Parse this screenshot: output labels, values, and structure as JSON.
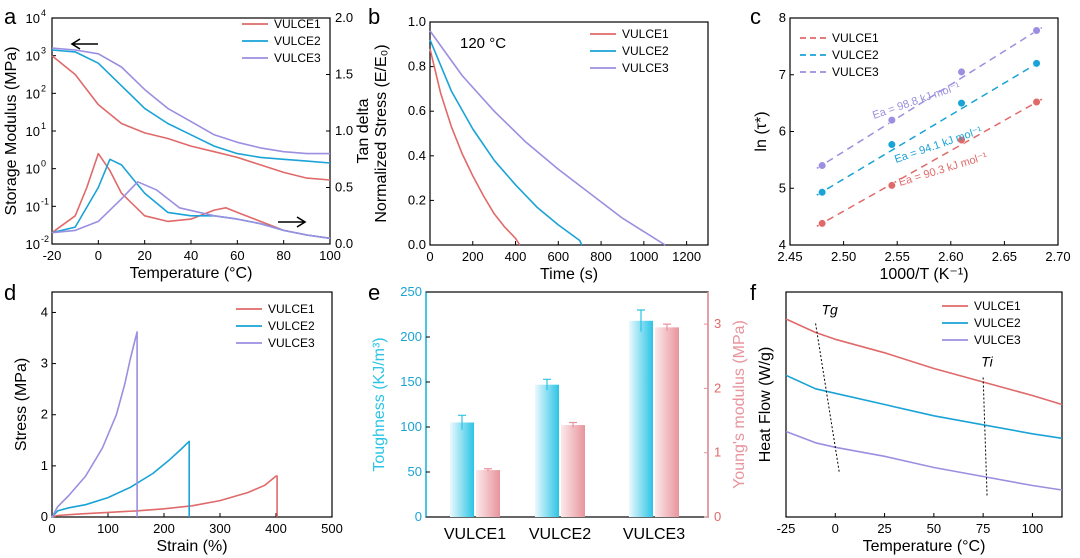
{
  "panel_labels": [
    "a",
    "b",
    "c",
    "d",
    "e",
    "f"
  ],
  "legend_names": [
    "VULCE1",
    "VULCE2",
    "VULCE3"
  ],
  "colors": {
    "VULCE1": "#e06a6a",
    "VULCE2": "#1aa3d6",
    "VULCE3": "#9a8fe0"
  },
  "chart_data": [
    {
      "panel": "a",
      "type": "line",
      "xlabel": "Temperature (°C)",
      "ylabel": "Storage Modulus (MPa)",
      "y2label": "Tan delta",
      "xlim": [
        -20,
        100
      ],
      "ylim_log": [
        -2,
        4
      ],
      "y2lim": [
        0,
        2.0
      ],
      "xticks": [
        "-20",
        "0",
        "20",
        "40",
        "60",
        "80",
        "100"
      ],
      "yticks": [
        "10",
        "10",
        "10",
        "10",
        "10",
        "10",
        "10"
      ],
      "yexps": [
        "-2",
        "-1",
        "0",
        "1",
        "2",
        "3",
        "4"
      ],
      "y2ticks": [
        "0.0",
        "0.5",
        "1.0",
        "1.5",
        "2.0"
      ],
      "annotations": [
        "arrow-left: storage modulus axis",
        "arrow-right: tan delta axis"
      ],
      "storage_modulus": [
        {
          "name": "VULCE1",
          "x": [
            -20,
            -10,
            0,
            10,
            20,
            30,
            40,
            50,
            60,
            70,
            80,
            90,
            100
          ],
          "logy": [
            3.0,
            2.5,
            1.7,
            1.2,
            0.95,
            0.8,
            0.6,
            0.45,
            0.3,
            0.1,
            -0.1,
            -0.25,
            -0.3
          ]
        },
        {
          "name": "VULCE2",
          "x": [
            -20,
            -10,
            0,
            10,
            20,
            30,
            40,
            50,
            60,
            70,
            80,
            90,
            100
          ],
          "logy": [
            3.15,
            3.1,
            2.8,
            2.2,
            1.6,
            1.2,
            0.9,
            0.6,
            0.4,
            0.3,
            0.25,
            0.2,
            0.15
          ]
        },
        {
          "name": "VULCE3",
          "x": [
            -20,
            -10,
            0,
            10,
            20,
            30,
            40,
            50,
            60,
            70,
            80,
            90,
            100
          ],
          "logy": [
            3.2,
            3.15,
            3.05,
            2.7,
            2.1,
            1.6,
            1.25,
            0.9,
            0.7,
            0.55,
            0.45,
            0.4,
            0.4
          ]
        }
      ],
      "tan_delta": [
        {
          "name": "VULCE1",
          "x": [
            -20,
            -10,
            -5,
            0,
            5,
            10,
            20,
            30,
            40,
            50,
            55,
            60,
            70,
            80,
            90,
            100
          ],
          "y": [
            0.1,
            0.25,
            0.5,
            0.8,
            0.65,
            0.45,
            0.25,
            0.2,
            0.22,
            0.3,
            0.32,
            0.28,
            0.2,
            0.12,
            0.08,
            0.05
          ]
        },
        {
          "name": "VULCE2",
          "x": [
            -20,
            -10,
            0,
            5,
            10,
            20,
            30,
            40,
            50,
            60,
            70,
            80,
            90,
            100
          ],
          "y": [
            0.1,
            0.15,
            0.5,
            0.75,
            0.7,
            0.45,
            0.28,
            0.25,
            0.25,
            0.22,
            0.18,
            0.12,
            0.08,
            0.05
          ]
        },
        {
          "name": "VULCE3",
          "x": [
            -20,
            -10,
            0,
            10,
            17,
            25,
            35,
            50,
            60,
            70,
            80,
            90,
            100
          ],
          "y": [
            0.1,
            0.12,
            0.2,
            0.4,
            0.55,
            0.48,
            0.32,
            0.25,
            0.22,
            0.18,
            0.12,
            0.08,
            0.05
          ]
        }
      ]
    },
    {
      "panel": "b",
      "type": "line",
      "xlabel": "Time (s)",
      "ylabel": "Normalized Stress (E/E₀)",
      "annotation": "120 °C",
      "xlim": [
        0,
        1300
      ],
      "ylim": [
        0,
        1.0
      ],
      "xticks": [
        "0",
        "200",
        "400",
        "600",
        "800",
        "1000",
        "1200"
      ],
      "yticks": [
        "0.0",
        "0.2",
        "0.4",
        "0.6",
        "0.8",
        "1.0"
      ],
      "series": [
        {
          "name": "VULCE1",
          "x": [
            0,
            50,
            100,
            150,
            200,
            250,
            300,
            350,
            400,
            420
          ],
          "y": [
            0.88,
            0.68,
            0.53,
            0.41,
            0.31,
            0.22,
            0.14,
            0.08,
            0.03,
            0.0
          ]
        },
        {
          "name": "VULCE2",
          "x": [
            0,
            100,
            200,
            300,
            400,
            500,
            600,
            700,
            710
          ],
          "y": [
            0.92,
            0.69,
            0.52,
            0.38,
            0.27,
            0.17,
            0.09,
            0.02,
            0.0
          ]
        },
        {
          "name": "VULCE3",
          "x": [
            0,
            150,
            300,
            450,
            600,
            750,
            900,
            1000,
            1100
          ],
          "y": [
            0.96,
            0.76,
            0.6,
            0.46,
            0.34,
            0.23,
            0.12,
            0.06,
            0.0
          ]
        }
      ]
    },
    {
      "panel": "c",
      "type": "scatter",
      "xlabel": "1000/T (K⁻¹)",
      "ylabel": "ln (τ*)",
      "xlim": [
        2.45,
        2.7
      ],
      "ylim": [
        4,
        8
      ],
      "xticks": [
        "2.45",
        "2.50",
        "2.55",
        "2.60",
        "2.65",
        "2.70"
      ],
      "yticks": [
        "4",
        "5",
        "6",
        "7",
        "8"
      ],
      "series": [
        {
          "name": "VULCE1",
          "x": [
            2.48,
            2.545,
            2.61,
            2.68
          ],
          "y": [
            4.38,
            5.05,
            5.85,
            6.52
          ],
          "fit_label": "Ea = 90.3 kJ mol⁻¹"
        },
        {
          "name": "VULCE2",
          "x": [
            2.48,
            2.545,
            2.61,
            2.68
          ],
          "y": [
            4.93,
            5.77,
            6.5,
            7.2
          ],
          "fit_label": "Ea = 94.1 kJ mol⁻¹"
        },
        {
          "name": "VULCE3",
          "x": [
            2.48,
            2.545,
            2.61,
            2.68
          ],
          "y": [
            5.4,
            6.2,
            7.05,
            7.78
          ],
          "fit_label": "Ea = 98.8 kJ mol⁻¹"
        }
      ]
    },
    {
      "panel": "d",
      "type": "line",
      "xlabel": "Strain (%)",
      "ylabel": "Stress (MPa)",
      "xlim": [
        0,
        500
      ],
      "ylim": [
        0,
        4.4
      ],
      "xticks": [
        "0",
        "100",
        "200",
        "300",
        "400",
        "500"
      ],
      "yticks": [
        "0",
        "1",
        "2",
        "3",
        "4"
      ],
      "series": [
        {
          "name": "VULCE1",
          "x": [
            0,
            10,
            50,
            100,
            150,
            200,
            250,
            300,
            350,
            380,
            400,
            402,
            402
          ],
          "y": [
            0,
            0.03,
            0.06,
            0.09,
            0.12,
            0.16,
            0.22,
            0.32,
            0.48,
            0.62,
            0.8,
            0.8,
            0.0
          ]
        },
        {
          "name": "VULCE2",
          "x": [
            0,
            10,
            30,
            60,
            100,
            140,
            180,
            210,
            230,
            242,
            245,
            245
          ],
          "y": [
            0,
            0.12,
            0.18,
            0.24,
            0.38,
            0.58,
            0.85,
            1.12,
            1.32,
            1.45,
            1.48,
            0.0
          ]
        },
        {
          "name": "VULCE3",
          "x": [
            0,
            10,
            30,
            60,
            90,
            115,
            130,
            140,
            148,
            152,
            152
          ],
          "y": [
            0,
            0.2,
            0.42,
            0.8,
            1.35,
            2.0,
            2.6,
            3.1,
            3.45,
            3.62,
            0.0
          ]
        }
      ]
    },
    {
      "panel": "e",
      "type": "bar",
      "categories": [
        "VULCE1",
        "VULCE2",
        "VULCE3"
      ],
      "ylabel": "Toughness (KJ/m³)",
      "y2label": "Young's modulus (MPa)",
      "ylim": [
        0,
        250
      ],
      "y2lim": [
        0,
        3.5
      ],
      "yticks": [
        "0",
        "50",
        "100",
        "150",
        "200",
        "250"
      ],
      "y2ticks": [
        "0",
        "1",
        "2",
        "3"
      ],
      "series": [
        {
          "name": "Toughness",
          "values": [
            105,
            147,
            218
          ],
          "errors": [
            8,
            6,
            12
          ],
          "color": "#2bc4e6"
        },
        {
          "name": "Young's modulus",
          "values": [
            0.73,
            1.43,
            2.95
          ],
          "errors": [
            0.02,
            0.04,
            0.05
          ],
          "color": "#e8949c"
        }
      ]
    },
    {
      "panel": "f",
      "type": "line",
      "xlabel": "Temperature (°C)",
      "ylabel": "Heat Flow (W/g)",
      "xlim": [
        -25,
        115
      ],
      "ylim": [
        0,
        1
      ],
      "xticks": [
        "-25",
        "0",
        "25",
        "50",
        "75",
        "100"
      ],
      "annotations": [
        "Tg",
        "Ti"
      ],
      "series": [
        {
          "name": "VULCE1",
          "x": [
            -25,
            -10,
            0,
            25,
            50,
            75,
            100,
            115
          ],
          "y": [
            0.88,
            0.82,
            0.79,
            0.73,
            0.66,
            0.6,
            0.54,
            0.5
          ]
        },
        {
          "name": "VULCE2",
          "x": [
            -25,
            -10,
            0,
            25,
            50,
            75,
            100,
            115
          ],
          "y": [
            0.63,
            0.57,
            0.55,
            0.5,
            0.45,
            0.41,
            0.37,
            0.35
          ]
        },
        {
          "name": "VULCE3",
          "x": [
            -25,
            -10,
            0,
            25,
            50,
            75,
            100,
            115
          ],
          "y": [
            0.38,
            0.33,
            0.31,
            0.27,
            0.22,
            0.18,
            0.14,
            0.12
          ]
        }
      ]
    }
  ]
}
